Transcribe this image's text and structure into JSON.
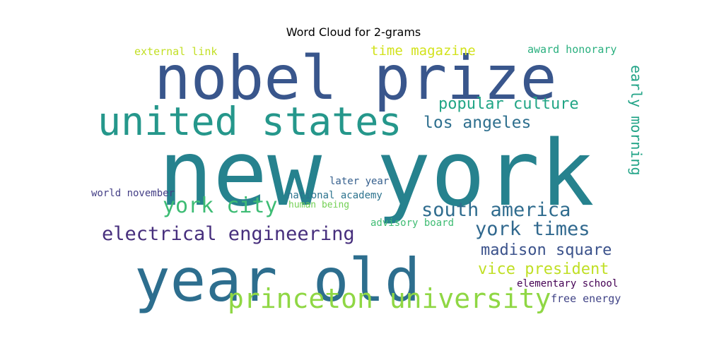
{
  "chart_data": {
    "type": "wordcloud",
    "title": "Word Cloud for 2-grams",
    "words": [
      {
        "text": "new york",
        "color": "#26828e"
      },
      {
        "text": "nobel prize",
        "color": "#39568c"
      },
      {
        "text": "year old",
        "color": "#2d6e8e"
      },
      {
        "text": "united states",
        "color": "#25978b"
      },
      {
        "text": "princeton university",
        "color": "#8fd744"
      },
      {
        "text": "york city",
        "color": "#3dbc74"
      },
      {
        "text": "south america",
        "color": "#2f6c8e"
      },
      {
        "text": "electrical engineering",
        "color": "#472f7d"
      },
      {
        "text": "york times",
        "color": "#30688e"
      },
      {
        "text": "los angeles",
        "color": "#2e6f8e"
      },
      {
        "text": "popular culture",
        "color": "#21a585"
      },
      {
        "text": "madison square",
        "color": "#3b528b"
      },
      {
        "text": "vice president",
        "color": "#c0df25"
      },
      {
        "text": "early morning",
        "color": "#20a386"
      },
      {
        "text": "time magazine",
        "color": "#d2e21b"
      },
      {
        "text": "external link",
        "color": "#c2df23"
      },
      {
        "text": "award honorary",
        "color": "#2ab07f"
      },
      {
        "text": "later year",
        "color": "#355f8d"
      },
      {
        "text": "world november",
        "color": "#433e85"
      },
      {
        "text": "national academy",
        "color": "#2c738e"
      },
      {
        "text": "human being",
        "color": "#74d055"
      },
      {
        "text": "advisory board",
        "color": "#3fbc73"
      },
      {
        "text": "elementary school",
        "color": "#440154"
      },
      {
        "text": "free energy",
        "color": "#414487"
      }
    ]
  }
}
